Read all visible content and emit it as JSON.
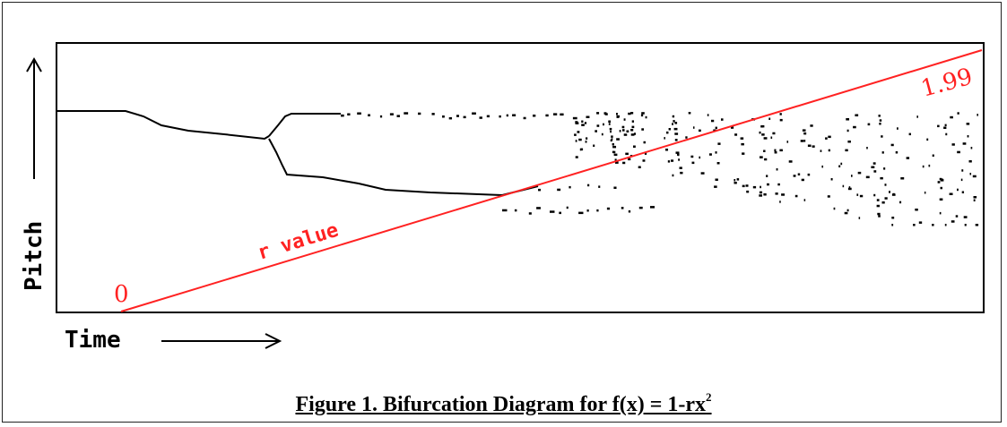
{
  "figure": {
    "y_axis_label": "Pitch",
    "x_axis_label": "Time",
    "diagonal_label": "r value",
    "start_label": "0",
    "end_label": "1.99",
    "caption_main": "Figure 1.  Bifurcation Diagram for f(x) = 1-rx",
    "caption_superscript": "2",
    "colors": {
      "accent": "#ff2222",
      "ink": "#000000"
    }
  }
}
